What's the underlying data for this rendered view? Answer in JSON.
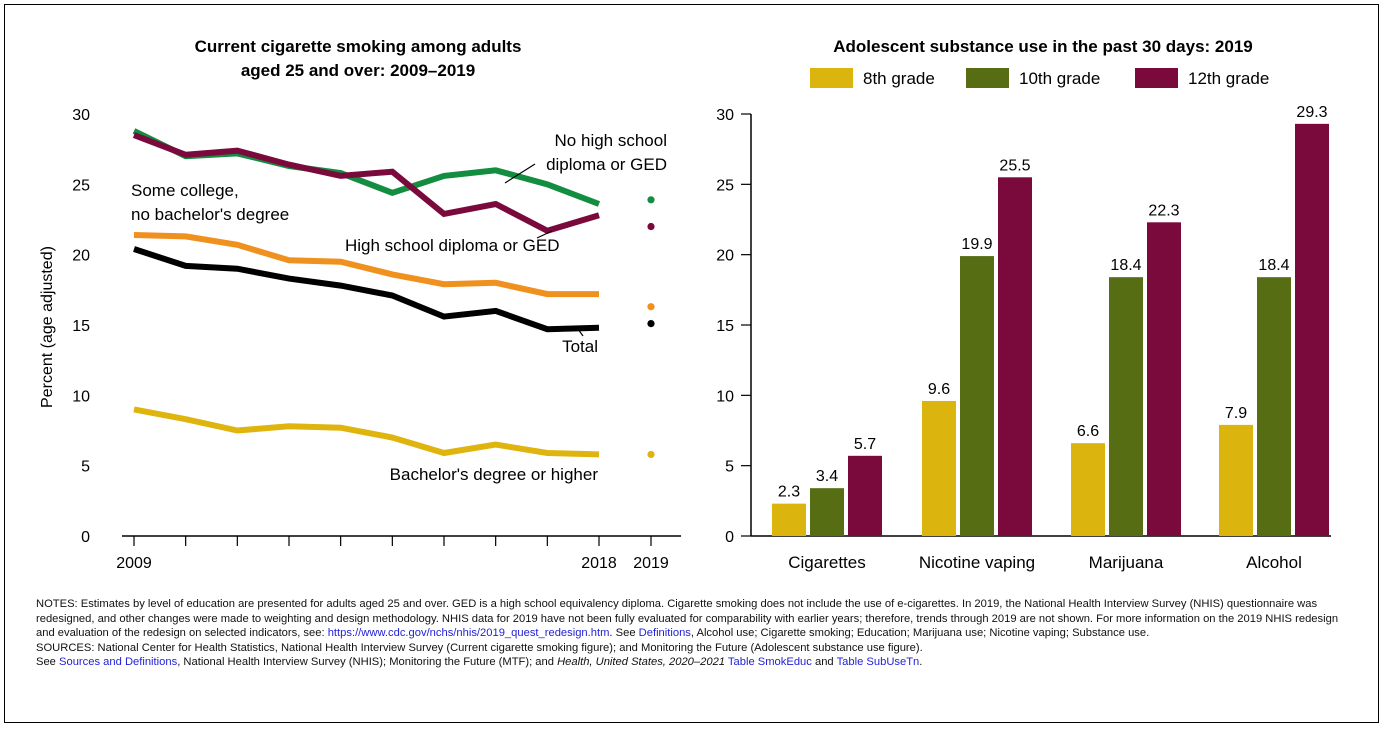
{
  "colors": {
    "no_hs": "#138d3f",
    "hs": "#7a0a3c",
    "some_college": "#f0901e",
    "total": "#000000",
    "bachelors": "#e0b40e",
    "grade8": "#dcb40e",
    "grade10": "#566d14",
    "grade12": "#7a0a3c",
    "link": "#1f1fd6"
  },
  "chart_data": [
    {
      "type": "line",
      "title_lines": [
        "Current cigarette smoking among adults",
        "aged 25 and over: 2009–2019"
      ],
      "ylabel": "Percent (age adjusted)",
      "ylim": [
        0,
        30
      ],
      "yticks": [
        "0",
        "5",
        "10",
        "15",
        "20",
        "25",
        "30"
      ],
      "x": [
        2009,
        2010,
        2011,
        2012,
        2013,
        2014,
        2015,
        2016,
        2017,
        2018
      ],
      "xtick_labels": [
        "2009",
        "2018",
        "2019"
      ],
      "series": [
        {
          "key": "no_hs",
          "name": "No high school diploma or GED",
          "label_lines": [
            "No high school",
            "diploma or GED"
          ],
          "values": [
            28.8,
            27.0,
            27.2,
            26.3,
            25.8,
            24.4,
            25.6,
            26.0,
            25.0,
            23.6
          ],
          "point2019": 23.9
        },
        {
          "key": "hs",
          "name": "High school diploma or GED",
          "label_lines": [
            "High school diploma or GED"
          ],
          "values": [
            28.5,
            27.1,
            27.4,
            26.4,
            25.6,
            25.9,
            22.9,
            23.6,
            21.7,
            22.8
          ],
          "point2019": 22.0
        },
        {
          "key": "some_college",
          "name": "Some college, no bachelor's degree",
          "label_lines": [
            "Some college,",
            "no bachelor's degree"
          ],
          "values": [
            21.4,
            21.3,
            20.7,
            19.6,
            19.5,
            18.6,
            17.9,
            18.0,
            17.2,
            17.2
          ],
          "point2019": 16.3
        },
        {
          "key": "total",
          "name": "Total",
          "label_lines": [
            "Total"
          ],
          "values": [
            20.4,
            19.2,
            19.0,
            18.3,
            17.8,
            17.1,
            15.6,
            16.0,
            14.7,
            14.8
          ],
          "point2019": 15.1
        },
        {
          "key": "bachelors",
          "name": "Bachelor's degree or higher",
          "label_lines": [
            "Bachelor's degree or higher"
          ],
          "values": [
            9.0,
            8.3,
            7.5,
            7.8,
            7.7,
            7.0,
            5.9,
            6.5,
            5.9,
            5.8
          ],
          "point2019": 5.8
        }
      ]
    },
    {
      "type": "bar",
      "title": "Adolescent substance use in the past 30 days: 2019",
      "ylim": [
        0,
        30
      ],
      "yticks": [
        "0",
        "5",
        "10",
        "15",
        "20",
        "25",
        "30"
      ],
      "categories": [
        "Cigarettes",
        "Nicotine vaping",
        "Marijuana",
        "Alcohol"
      ],
      "legend_position": "top",
      "series": [
        {
          "key": "grade8",
          "name": "8th grade",
          "values": [
            2.3,
            9.6,
            6.6,
            7.9
          ],
          "labels": [
            "2.3",
            "9.6",
            "6.6",
            "7.9"
          ]
        },
        {
          "key": "grade10",
          "name": "10th grade",
          "values": [
            3.4,
            19.9,
            18.4,
            18.4
          ],
          "labels": [
            "3.4",
            "19.9",
            "18.4",
            "18.4"
          ]
        },
        {
          "key": "grade12",
          "name": "12th grade",
          "values": [
            5.7,
            25.5,
            22.3,
            29.3
          ],
          "labels": [
            "5.7",
            "25.5",
            "22.3",
            "29.3"
          ]
        }
      ]
    }
  ],
  "notes": {
    "notes_text": "NOTES: Estimates by level of education are presented for adults aged 25 and over. GED is a high school equivalency diploma. Cigarette smoking does not include the use of e-cigarettes. In 2019, the National Health Interview Survey (NHIS) questionnaire was redesigned, and other changes were made to weighting and design methodology. NHIS data for 2019 have not been fully evaluated for comparability with earlier years; therefore, trends through 2019 are not shown. For more information on the 2019 NHIS redesign and evaluation of the redesign on selected indicators, see:",
    "redesign_link": "https://www.cdc.gov/nchs/nhis/2019_quest_redesign.htm",
    "see_text": ". See ",
    "definitions_link": "Definitions",
    "definitions_tail": ", Alcohol use; Cigarette smoking; Education; Marijuana use; Nicotine vaping; Substance use.",
    "sources_text": "SOURCES: National Center for Health Statistics, National Health Interview Survey (Current cigarette smoking figure); and Monitoring the Future (Adolescent substance use figure).",
    "see2": "See ",
    "sources_link": "Sources and Definitions",
    "sources_mid": ", National Health Interview Survey (NHIS); Monitoring the Future (MTF); and ",
    "hus_title": "Health, United States, 2020–2021",
    "space": " ",
    "table1_link": "Table SmokEduc",
    "and_text": " and ",
    "table2_link": "Table SubUseTn",
    "period": "."
  }
}
